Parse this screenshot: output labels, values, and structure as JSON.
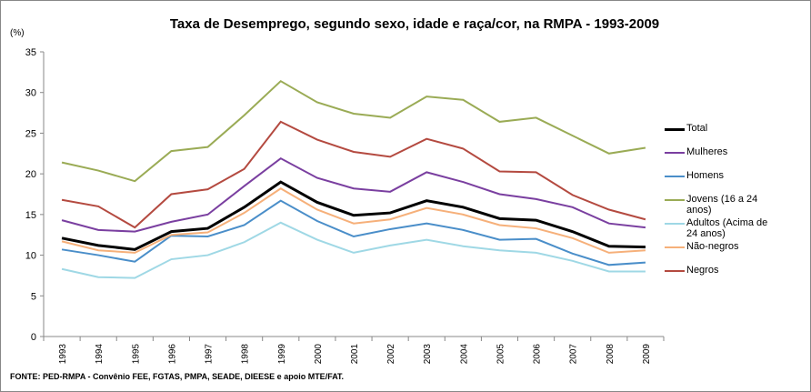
{
  "chart_data": {
    "type": "line",
    "title": "Taxa de Desemprego, segundo sexo, idade e raça/cor, na RMPA - 1993-2009",
    "y_label": "(%)",
    "source": "FONTE: PED-RMPA - Convênio FEE, FGTAS, PMPA, SEADE, DIEESE e apoio MTE/FAT.",
    "categories": [
      "1993",
      "1994",
      "1995",
      "1996",
      "1997",
      "1998",
      "1999",
      "2000",
      "2001",
      "2002",
      "2003",
      "2004",
      "2005",
      "2006",
      "2007",
      "2008",
      "2009"
    ],
    "ylim": [
      0,
      35
    ],
    "yticks": [
      0,
      5,
      10,
      15,
      20,
      25,
      30,
      35
    ],
    "grid": false,
    "legend": "right",
    "series": [
      {
        "name": "Total",
        "color": "#000000",
        "width": 3,
        "values": [
          12.1,
          11.2,
          10.7,
          12.9,
          13.3,
          15.9,
          19.0,
          16.5,
          14.9,
          15.2,
          16.7,
          15.9,
          14.5,
          14.3,
          12.9,
          11.1,
          11.0
        ]
      },
      {
        "name": "Mulheres",
        "color": "#7a3fa0",
        "width": 2,
        "values": [
          14.3,
          13.1,
          12.9,
          14.1,
          15.0,
          18.5,
          21.9,
          19.5,
          18.2,
          17.8,
          20.2,
          19.0,
          17.5,
          16.9,
          15.9,
          13.9,
          13.4
        ]
      },
      {
        "name": "Homens",
        "color": "#4a8ec9",
        "width": 2,
        "values": [
          10.7,
          10.0,
          9.2,
          12.4,
          12.3,
          13.7,
          16.7,
          14.2,
          12.3,
          13.2,
          13.9,
          13.1,
          11.9,
          12.0,
          10.2,
          8.8,
          9.1
        ]
      },
      {
        "name": "Jovens (16 a 24 anos)",
        "color": "#9aab55",
        "width": 2,
        "values": [
          21.4,
          20.4,
          19.1,
          22.8,
          23.3,
          27.2,
          31.4,
          28.8,
          27.4,
          26.9,
          29.5,
          29.1,
          26.4,
          26.9,
          24.7,
          22.5,
          23.2
        ]
      },
      {
        "name": "Adultos (Acima de 24 anos)",
        "color": "#9fd8e5",
        "width": 2,
        "values": [
          8.3,
          7.3,
          7.2,
          9.5,
          10.0,
          11.6,
          14.0,
          11.9,
          10.3,
          11.2,
          11.9,
          11.1,
          10.6,
          10.3,
          9.3,
          8.0,
          8.0
        ]
      },
      {
        "name": "Não-negros",
        "color": "#f6b07a",
        "width": 2,
        "values": [
          11.7,
          10.6,
          10.3,
          12.5,
          12.8,
          15.2,
          18.2,
          15.6,
          13.9,
          14.4,
          15.8,
          15.0,
          13.7,
          13.3,
          12.1,
          10.3,
          10.6
        ]
      },
      {
        "name": "Negros",
        "color": "#b44a40",
        "width": 2,
        "values": [
          16.8,
          16.0,
          13.4,
          17.5,
          18.1,
          20.6,
          26.4,
          24.2,
          22.7,
          22.1,
          24.3,
          23.1,
          20.3,
          20.2,
          17.4,
          15.6,
          14.4
        ]
      }
    ]
  }
}
